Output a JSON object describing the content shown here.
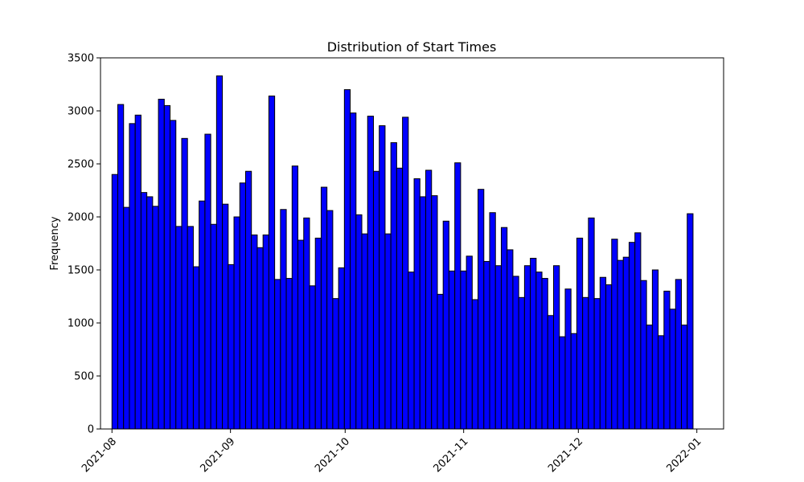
{
  "chart_data": {
    "type": "bar",
    "title": "Distribution of Start Times",
    "xlabel": "",
    "ylabel": "Frequency",
    "ylim": [
      0,
      3500
    ],
    "xlim": [
      "2021-07-29",
      "2022-01-08"
    ],
    "x_range": [
      "2021-08-01",
      "2021-12-31"
    ],
    "bar_color": "#0000ff",
    "edge_color": "#000000",
    "grid": false,
    "legend": false,
    "yticks": [
      0,
      500,
      1000,
      1500,
      2000,
      2500,
      3000,
      3500
    ],
    "xticks": [
      {
        "date": "2021-08-01",
        "label": "2021-08"
      },
      {
        "date": "2021-09-01",
        "label": "2021-09"
      },
      {
        "date": "2021-10-01",
        "label": "2021-10"
      },
      {
        "date": "2021-11-01",
        "label": "2021-11"
      },
      {
        "date": "2021-12-01",
        "label": "2021-12"
      },
      {
        "date": "2022-01-01",
        "label": "2022-01"
      }
    ],
    "values": [
      2400,
      3060,
      2090,
      2880,
      2960,
      2230,
      2190,
      2100,
      3110,
      3050,
      2910,
      1910,
      2740,
      1910,
      1530,
      2150,
      2780,
      1930,
      3330,
      2120,
      1550,
      2000,
      2320,
      2430,
      1830,
      1710,
      1830,
      3140,
      1410,
      2070,
      1420,
      2480,
      1780,
      1990,
      1350,
      1800,
      2280,
      2060,
      1230,
      1520,
      3200,
      2980,
      2020,
      1840,
      2950,
      2430,
      2860,
      1840,
      2700,
      2460,
      2940,
      1480,
      2360,
      2190,
      2440,
      2200,
      1270,
      1960,
      1490,
      2510,
      1490,
      1630,
      1220,
      2260,
      1580,
      2040,
      1540,
      1900,
      1690,
      1440,
      1240,
      1540,
      1610,
      1480,
      1420,
      1070,
      1540,
      870,
      1320,
      900,
      1800,
      1240,
      1990,
      1230,
      1430,
      1360,
      1790,
      1590,
      1620,
      1760,
      1850,
      1400,
      980,
      1500,
      880,
      1300,
      1130,
      1410,
      980,
      2030
    ]
  }
}
